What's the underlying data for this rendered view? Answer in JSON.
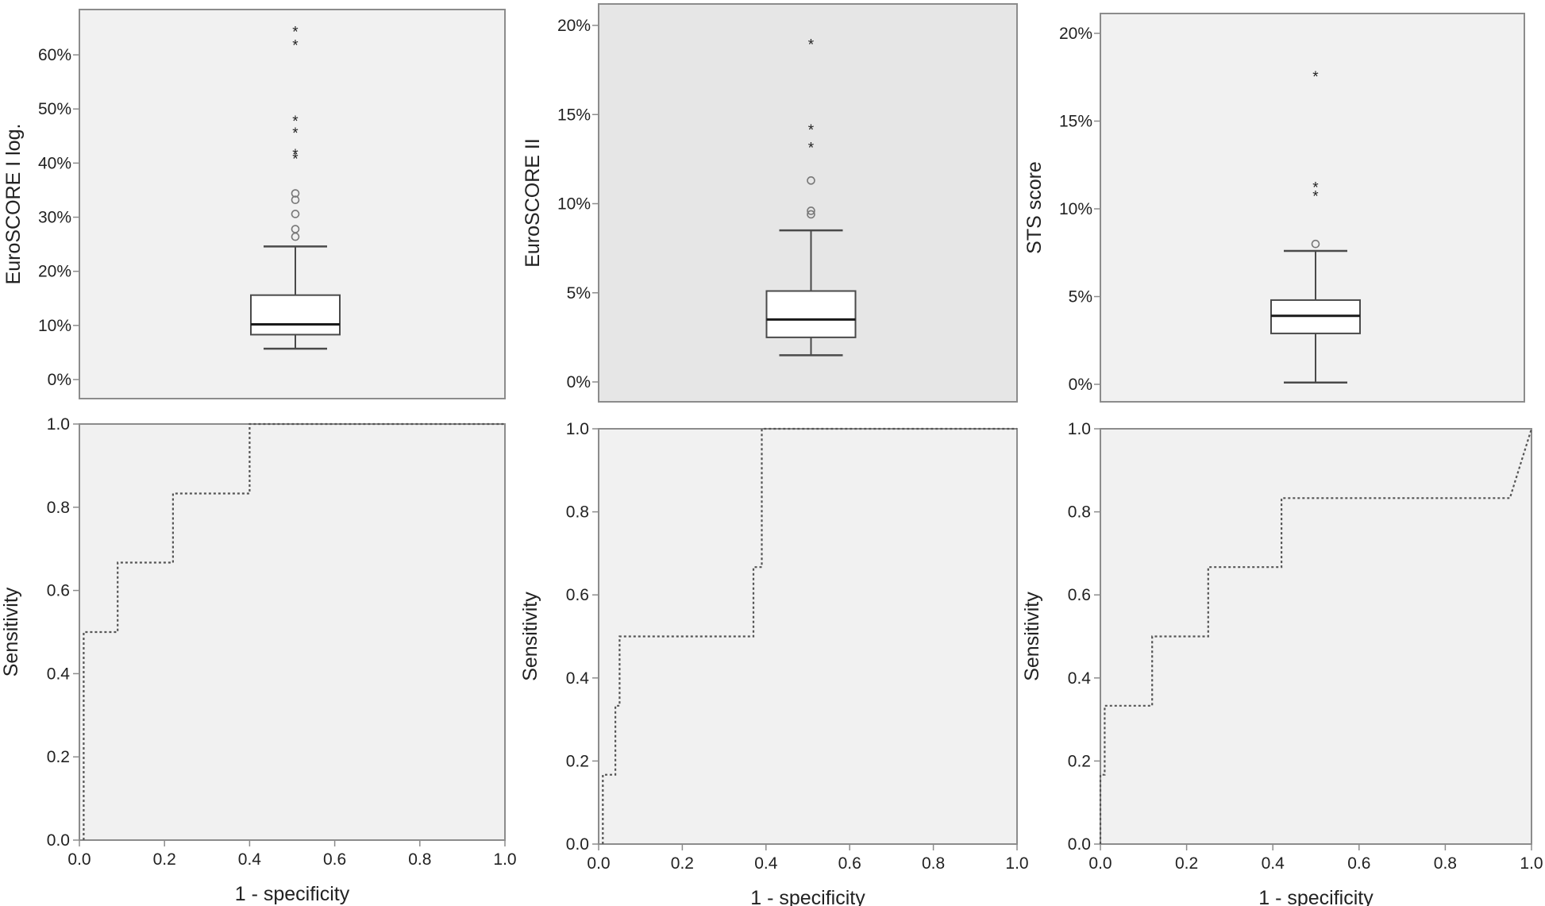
{
  "colors": {
    "panel_fill": "#f1f1f1",
    "panel_fill_dark": "#e6e6e6",
    "frame": "#8c8c8c",
    "box": "#ffffff",
    "ink": "#4a4a4a",
    "median": "#1a1a1a",
    "roc_line": "#555555"
  },
  "chart_data": [
    {
      "type": "box",
      "ylabel": "EuroSCORE I log.",
      "ylim": [
        0,
        65
      ],
      "yticks": [
        0,
        10,
        20,
        30,
        40,
        50,
        60
      ],
      "ytick_labels": [
        "0%",
        "10%",
        "20%",
        "30%",
        "40%",
        "50%",
        "60%"
      ],
      "whisker_low": 5.7,
      "q1": 8.3,
      "median": 10.2,
      "q3": 15.6,
      "whisker_high": 24.6,
      "outliers_circle": [
        26.4,
        27.8,
        30.6,
        33.2,
        34.4
      ],
      "outliers_star": [
        41.0,
        41.8,
        45.8,
        48.0,
        62.0,
        64.5
      ]
    },
    {
      "type": "box",
      "ylabel": "EuroSCORE II",
      "ylim": [
        0,
        20
      ],
      "yticks": [
        0,
        5,
        10,
        15,
        20
      ],
      "ytick_labels": [
        "0%",
        "5%",
        "10%",
        "15%",
        "20%"
      ],
      "whisker_low": 1.5,
      "q1": 2.5,
      "median": 3.5,
      "q3": 5.1,
      "whisker_high": 8.5,
      "outliers_circle": [
        9.4,
        9.6,
        11.3
      ],
      "outliers_star": [
        13.2,
        14.2,
        19.0
      ]
    },
    {
      "type": "box",
      "ylabel": "STS score",
      "ylim": [
        0,
        20
      ],
      "yticks": [
        0,
        5,
        10,
        15,
        20
      ],
      "ytick_labels": [
        "0%",
        "5%",
        "10%",
        "15%",
        "20%"
      ],
      "whisker_low": 0.1,
      "q1": 2.9,
      "median": 3.9,
      "q3": 4.8,
      "whisker_high": 7.6,
      "outliers_circle": [
        8.0
      ],
      "outliers_star": [
        10.8,
        11.3,
        17.6
      ]
    },
    {
      "type": "line",
      "xlabel": "1 - specificity",
      "ylabel": "Sensitivity",
      "xlim": [
        0,
        1
      ],
      "ylim": [
        0,
        1
      ],
      "xticks": [
        0,
        0.2,
        0.4,
        0.6,
        0.8,
        1
      ],
      "xtick_labels": [
        "0.0",
        "0.2",
        "0.4",
        "0.6",
        "0.8",
        "1.0"
      ],
      "yticks": [
        0,
        0.2,
        0.4,
        0.6,
        0.8,
        1
      ],
      "ytick_labels": [
        "0.0",
        "0.2",
        "0.4",
        "0.6",
        "0.8",
        "1.0"
      ],
      "x": [
        0.01,
        0.01,
        0.09,
        0.09,
        0.22,
        0.22,
        0.4,
        0.4,
        1.0
      ],
      "y": [
        0.0,
        0.5,
        0.5,
        0.667,
        0.667,
        0.833,
        0.833,
        1.0,
        1.0
      ]
    },
    {
      "type": "line",
      "xlabel": "1 - specificity",
      "ylabel": "Sensitivity",
      "xlim": [
        0,
        1
      ],
      "ylim": [
        0,
        1
      ],
      "xticks": [
        0,
        0.2,
        0.4,
        0.6,
        0.8,
        1
      ],
      "xtick_labels": [
        "0.0",
        "0.2",
        "0.4",
        "0.6",
        "0.8",
        "1.0"
      ],
      "yticks": [
        0,
        0.2,
        0.4,
        0.6,
        0.8,
        1
      ],
      "ytick_labels": [
        "0.0",
        "0.2",
        "0.4",
        "0.6",
        "0.8",
        "1.0"
      ],
      "x": [
        0.01,
        0.01,
        0.04,
        0.04,
        0.05,
        0.05,
        0.37,
        0.37,
        0.39,
        0.39,
        1.0
      ],
      "y": [
        0.0,
        0.167,
        0.167,
        0.333,
        0.333,
        0.5,
        0.5,
        0.667,
        0.667,
        1.0,
        1.0
      ]
    },
    {
      "type": "line",
      "xlabel": "1 - specificity",
      "ylabel": "Sensitivity",
      "xlim": [
        0,
        1
      ],
      "ylim": [
        0,
        1
      ],
      "xticks": [
        0,
        0.2,
        0.4,
        0.6,
        0.8,
        1
      ],
      "xtick_labels": [
        "0.0",
        "0.2",
        "0.4",
        "0.6",
        "0.8",
        "1.0"
      ],
      "yticks": [
        0,
        0.2,
        0.4,
        0.6,
        0.8,
        1
      ],
      "ytick_labels": [
        "0.0",
        "0.2",
        "0.4",
        "0.6",
        "0.8",
        "1.0"
      ],
      "x": [
        0.0,
        0.0,
        0.01,
        0.01,
        0.12,
        0.12,
        0.25,
        0.25,
        0.42,
        0.42,
        0.95,
        1.0
      ],
      "y": [
        0.0,
        0.167,
        0.167,
        0.333,
        0.333,
        0.5,
        0.5,
        0.667,
        0.667,
        0.833,
        0.833,
        1.0
      ]
    }
  ]
}
